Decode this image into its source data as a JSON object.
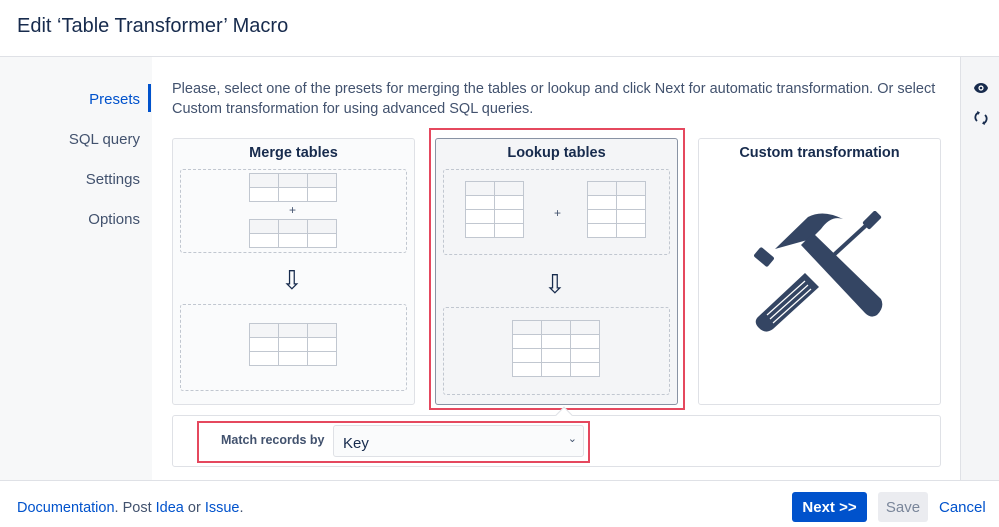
{
  "header": {
    "title": "Edit ‘Table Transformer’ Macro"
  },
  "nav": {
    "items": [
      {
        "label": "Presets",
        "active": true
      },
      {
        "label": "SQL query"
      },
      {
        "label": "Settings"
      },
      {
        "label": "Options"
      }
    ]
  },
  "intro": "Please, select one of the presets for merging the tables or lookup and click Next for automatic transformation. Or select Custom transformation for using advanced SQL queries.",
  "presets": [
    {
      "title": "Merge tables",
      "selected": false
    },
    {
      "title": "Lookup tables",
      "selected": true
    },
    {
      "title": "Custom transformation",
      "selected": false,
      "icon": "hammer-screwdriver-icon"
    }
  ],
  "symbols": {
    "plus": "+",
    "arrow": "⇩"
  },
  "match": {
    "label": "Match records by",
    "value": "Key"
  },
  "rightbar": {
    "icons": [
      "eye-icon",
      "refresh-icon"
    ]
  },
  "footer": {
    "documentation": "Documentation",
    "sep1": ". Post ",
    "idea": "Idea",
    "sep2": " or ",
    "issue": "Issue",
    "sep3": ".",
    "next": "Next >>",
    "save": "Save",
    "cancel": "Cancel"
  },
  "colors": {
    "accent": "#0052cc",
    "highlight": "#e5485e",
    "icon": "#344563"
  }
}
